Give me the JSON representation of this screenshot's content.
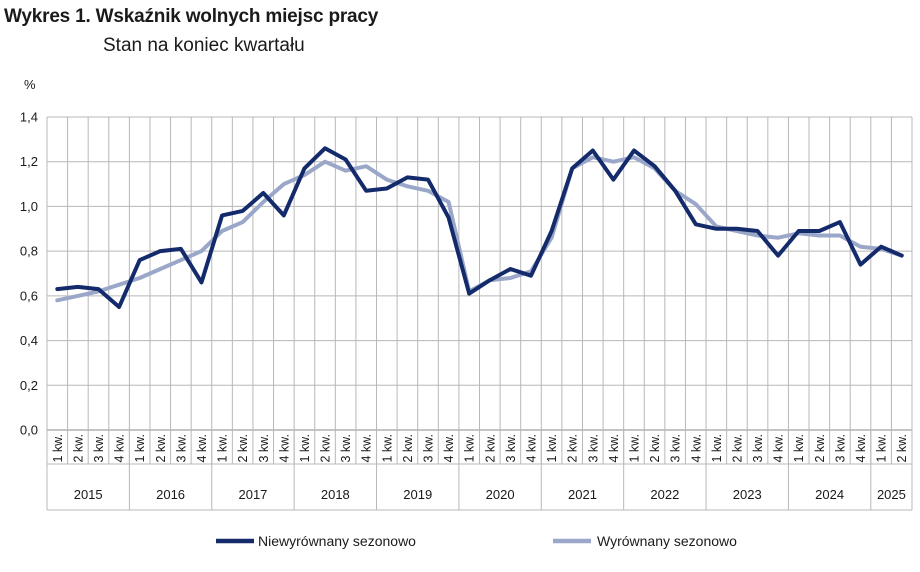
{
  "chart_data": {
    "type": "line",
    "title": "Wykres 1. Wskaźnik wolnych miejsc pracy",
    "subtitle": "Stan na koniec kwartału",
    "ylabel": "%",
    "ylim": [
      0,
      1.4
    ],
    "yticks": [
      "0,0",
      "0,2",
      "0,4",
      "0,6",
      "0,8",
      "1,0",
      "1,2",
      "1,4"
    ],
    "quarter_labels": [
      "1 kw.",
      "2 kw.",
      "3 kw.",
      "4 kw."
    ],
    "years": [
      "2015",
      "2016",
      "2017",
      "2018",
      "2019",
      "2020",
      "2021",
      "2022",
      "2023",
      "2024",
      "2025"
    ],
    "quarters_in_last_year": 2,
    "grid": true,
    "legend_position": "bottom",
    "series": [
      {
        "name": "Niewyrównany sezonowo",
        "color": "#132a6b",
        "values": [
          0.63,
          0.64,
          0.63,
          0.55,
          0.76,
          0.8,
          0.81,
          0.66,
          0.96,
          0.98,
          1.06,
          0.96,
          1.17,
          1.26,
          1.21,
          1.07,
          1.08,
          1.13,
          1.12,
          0.95,
          0.61,
          0.67,
          0.72,
          0.69,
          0.89,
          1.17,
          1.25,
          1.12,
          1.25,
          1.18,
          1.07,
          0.92,
          0.9,
          0.9,
          0.89,
          0.78,
          0.89,
          0.89,
          0.93,
          0.74,
          0.82,
          0.78
        ]
      },
      {
        "name": "Wyrównany sezonowo",
        "color": "#9aa7c9",
        "values": [
          0.58,
          0.6,
          0.62,
          0.65,
          0.68,
          0.72,
          0.76,
          0.8,
          0.89,
          0.93,
          1.02,
          1.1,
          1.14,
          1.2,
          1.16,
          1.18,
          1.12,
          1.09,
          1.07,
          1.02,
          0.62,
          0.67,
          0.68,
          0.71,
          0.86,
          1.17,
          1.22,
          1.2,
          1.22,
          1.17,
          1.07,
          1.01,
          0.91,
          0.89,
          0.87,
          0.86,
          0.88,
          0.87,
          0.87,
          0.82,
          0.81,
          0.78
        ]
      }
    ]
  }
}
